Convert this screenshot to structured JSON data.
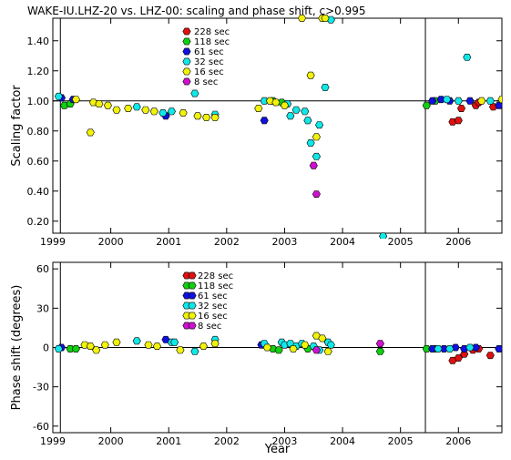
{
  "title": "WAKE-IU.LHZ-20 vs. LHZ-00: scaling and phase shift, c>0.995",
  "colors": {
    "228 sec": "#e01010",
    "118 sec": "#10d010",
    "61 sec": "#1010e0",
    "32 sec": "#10e8e8",
    "16 sec": "#f2f20a",
    "8 sec": "#d010d0"
  },
  "xlabel": "Year",
  "x_tick_labels": [
    "1999",
    "2000",
    "2001",
    "2002",
    "2003",
    "2004",
    "2005",
    "2006"
  ],
  "chart_data": [
    {
      "type": "scatter",
      "title": "WAKE-IU.LHZ-20 vs. LHZ-00: scaling and phase shift, c>0.995",
      "xlabel": "",
      "ylabel": "Scaling factor",
      "xlim": [
        1999.0,
        2006.75
      ],
      "ylim": [
        0.12,
        1.55
      ],
      "y_ticks": [
        "0.20",
        "0.40",
        "0.60",
        "0.80",
        "1.00",
        "1.20",
        "1.40"
      ],
      "reference_line": 1.0,
      "vertical_lines": [
        1999.13,
        2005.43
      ],
      "legend": [
        "228 sec",
        "118 sec",
        "61 sec",
        "32 sec",
        "16 sec",
        "8 sec"
      ],
      "series": [
        {
          "name": "228 sec",
          "points": [
            [
              2005.9,
              0.86
            ],
            [
              2006.0,
              0.87
            ],
            [
              2006.05,
              0.95
            ],
            [
              2006.3,
              0.97
            ],
            [
              2006.6,
              0.96
            ],
            [
              2006.35,
              0.99
            ]
          ]
        },
        {
          "name": "118 sec",
          "points": [
            [
              1999.2,
              0.97
            ],
            [
              1999.3,
              0.98
            ],
            [
              2002.8,
              1.0
            ],
            [
              2002.95,
              0.99
            ],
            [
              2005.45,
              0.97
            ],
            [
              2005.6,
              1.0
            ]
          ]
        },
        {
          "name": "61 sec",
          "points": [
            [
              1999.15,
              1.02
            ],
            [
              1999.35,
              1.01
            ],
            [
              2000.95,
              0.9
            ],
            [
              2002.65,
              0.87
            ],
            [
              2005.55,
              1.0
            ],
            [
              2005.7,
              1.01
            ],
            [
              2005.85,
              1.0
            ],
            [
              2006.2,
              1.0
            ],
            [
              2006.7,
              0.97
            ]
          ]
        },
        {
          "name": "32 sec",
          "points": [
            [
              1999.1,
              1.03
            ],
            [
              2000.45,
              0.96
            ],
            [
              2000.9,
              0.92
            ],
            [
              2001.05,
              0.93
            ],
            [
              2001.45,
              1.05
            ],
            [
              2001.8,
              0.91
            ],
            [
              2002.65,
              1.0
            ],
            [
              2003.05,
              0.98
            ],
            [
              2003.1,
              0.9
            ],
            [
              2003.2,
              0.94
            ],
            [
              2003.35,
              0.93
            ],
            [
              2003.4,
              0.87
            ],
            [
              2003.45,
              0.72
            ],
            [
              2003.55,
              0.63
            ],
            [
              2003.6,
              0.84
            ],
            [
              2003.7,
              1.09
            ],
            [
              2003.8,
              1.54
            ],
            [
              2004.7,
              0.1
            ],
            [
              2005.8,
              1.01
            ],
            [
              2006.0,
              1.0
            ],
            [
              2006.15,
              1.29
            ],
            [
              2006.55,
              1.0
            ]
          ]
        },
        {
          "name": "16 sec",
          "points": [
            [
              1999.4,
              1.01
            ],
            [
              1999.65,
              0.79
            ],
            [
              1999.7,
              0.99
            ],
            [
              1999.8,
              0.98
            ],
            [
              1999.95,
              0.97
            ],
            [
              2000.1,
              0.94
            ],
            [
              2000.3,
              0.95
            ],
            [
              2000.6,
              0.94
            ],
            [
              2000.75,
              0.93
            ],
            [
              2001.25,
              0.92
            ],
            [
              2001.5,
              0.9
            ],
            [
              2001.65,
              0.89
            ],
            [
              2001.8,
              0.89
            ],
            [
              2002.55,
              0.95
            ],
            [
              2002.75,
              1.0
            ],
            [
              2002.85,
              0.99
            ],
            [
              2003.0,
              0.97
            ],
            [
              2003.3,
              1.55
            ],
            [
              2003.45,
              1.17
            ],
            [
              2003.55,
              0.76
            ],
            [
              2003.65,
              1.55
            ],
            [
              2003.7,
              1.55
            ],
            [
              2006.4,
              1.0
            ],
            [
              2006.75,
              1.01
            ]
          ]
        },
        {
          "name": "8 sec",
          "points": [
            [
              2003.5,
              0.57
            ],
            [
              2003.55,
              0.38
            ]
          ]
        }
      ]
    },
    {
      "type": "scatter",
      "xlabel": "Year",
      "ylabel": "Phase shift (degrees)",
      "xlim": [
        1999.0,
        2006.75
      ],
      "ylim": [
        -65,
        65
      ],
      "y_ticks": [
        "-60",
        "-30",
        "0",
        "30",
        "60"
      ],
      "reference_line": 0,
      "vertical_lines": [
        1999.13,
        2005.43
      ],
      "legend": [
        "228 sec",
        "118 sec",
        "61 sec",
        "32 sec",
        "16 sec",
        "8 sec"
      ],
      "series": [
        {
          "name": "228 sec",
          "points": [
            [
              2005.9,
              -10
            ],
            [
              2006.0,
              -8
            ],
            [
              2006.1,
              -5
            ],
            [
              2006.25,
              -2
            ],
            [
              2006.35,
              -1
            ],
            [
              2006.55,
              -6
            ]
          ]
        },
        {
          "name": "118 sec",
          "points": [
            [
              1999.3,
              -1
            ],
            [
              1999.4,
              -1
            ],
            [
              2002.8,
              -1
            ],
            [
              2002.9,
              -2
            ],
            [
              2003.4,
              -1
            ],
            [
              2004.65,
              -3
            ],
            [
              2005.45,
              -1
            ],
            [
              2005.6,
              -1
            ]
          ]
        },
        {
          "name": "61 sec",
          "points": [
            [
              1999.15,
              0
            ],
            [
              2000.95,
              6
            ],
            [
              2002.6,
              2
            ],
            [
              2005.55,
              -1
            ],
            [
              2005.75,
              -1
            ],
            [
              2005.95,
              0
            ],
            [
              2006.1,
              -1
            ],
            [
              2006.3,
              0
            ],
            [
              2006.7,
              -1
            ]
          ]
        },
        {
          "name": "32 sec",
          "points": [
            [
              1999.1,
              -1
            ],
            [
              2000.45,
              5
            ],
            [
              2001.05,
              4
            ],
            [
              2001.1,
              4
            ],
            [
              2001.45,
              -3
            ],
            [
              2001.8,
              6
            ],
            [
              2002.65,
              3
            ],
            [
              2002.95,
              4
            ],
            [
              2003.0,
              2
            ],
            [
              2003.1,
              3
            ],
            [
              2003.2,
              1
            ],
            [
              2003.3,
              3
            ],
            [
              2003.5,
              1
            ],
            [
              2003.6,
              -2
            ],
            [
              2003.75,
              4
            ],
            [
              2003.8,
              2
            ],
            [
              2005.65,
              -1
            ],
            [
              2005.85,
              -1
            ],
            [
              2006.2,
              0
            ]
          ]
        },
        {
          "name": "16 sec",
          "points": [
            [
              1999.55,
              2
            ],
            [
              1999.65,
              1
            ],
            [
              1999.75,
              -2
            ],
            [
              1999.9,
              2
            ],
            [
              2000.1,
              4
            ],
            [
              2000.65,
              2
            ],
            [
              2000.8,
              1
            ],
            [
              2001.2,
              -2
            ],
            [
              2001.6,
              1
            ],
            [
              2001.8,
              3
            ],
            [
              2002.7,
              0
            ],
            [
              2003.15,
              -1
            ],
            [
              2003.35,
              2
            ],
            [
              2003.55,
              9
            ],
            [
              2003.65,
              7
            ],
            [
              2003.75,
              -3
            ]
          ]
        },
        {
          "name": "8 sec",
          "points": [
            [
              2003.55,
              -2
            ],
            [
              2004.65,
              3
            ]
          ]
        }
      ]
    }
  ]
}
